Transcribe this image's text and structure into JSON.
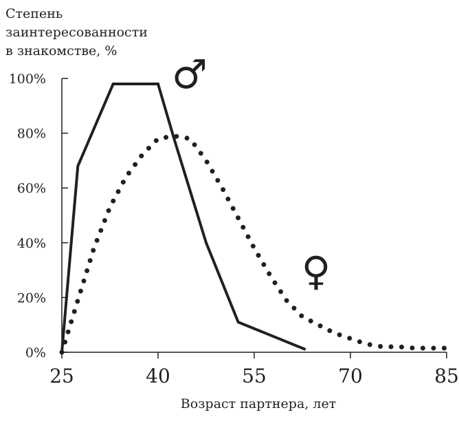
{
  "chart_data": {
    "type": "line",
    "title": "",
    "ylabel_lines": [
      "Степень",
      "заинтересованности",
      "в знакомстве, %"
    ],
    "xlabel": "Возраст партнера, лет",
    "x_ticks": [
      "25",
      "40",
      "55",
      "70",
      "85"
    ],
    "x_tick_values": [
      25,
      40,
      55,
      70,
      85
    ],
    "y_ticks": [
      "0%",
      "20%",
      "40%",
      "60%",
      "80%",
      "100%"
    ],
    "y_tick_values": [
      0,
      20,
      40,
      60,
      80,
      100
    ],
    "xlim": [
      25,
      85
    ],
    "ylim": [
      0,
      100
    ],
    "grid": false,
    "series": [
      {
        "symbol": "♂",
        "style": "solid",
        "color": "#231f20",
        "x": [
          25,
          27.5,
          33,
          40,
          42.5,
          47.5,
          52.5,
          63
        ],
        "y": [
          0,
          68,
          98,
          98,
          78,
          40,
          11,
          1
        ]
      },
      {
        "symbol": "♀",
        "style": "dotted",
        "color": "#231f20",
        "x": [
          25,
          27.5,
          30,
          32.5,
          35,
          37.5,
          40,
          42.5,
          45,
          47.5,
          50,
          52.5,
          55,
          57.5,
          60,
          62.5,
          65,
          67.5,
          70,
          72.5,
          75,
          77.5,
          80,
          82.5,
          85
        ],
        "y": [
          0,
          19,
          38,
          53,
          64,
          72,
          78,
          79,
          78,
          70,
          60,
          49,
          38,
          28,
          19,
          13,
          10,
          7,
          5,
          3,
          2,
          2,
          1.5,
          1.5,
          1.5
        ]
      }
    ]
  }
}
